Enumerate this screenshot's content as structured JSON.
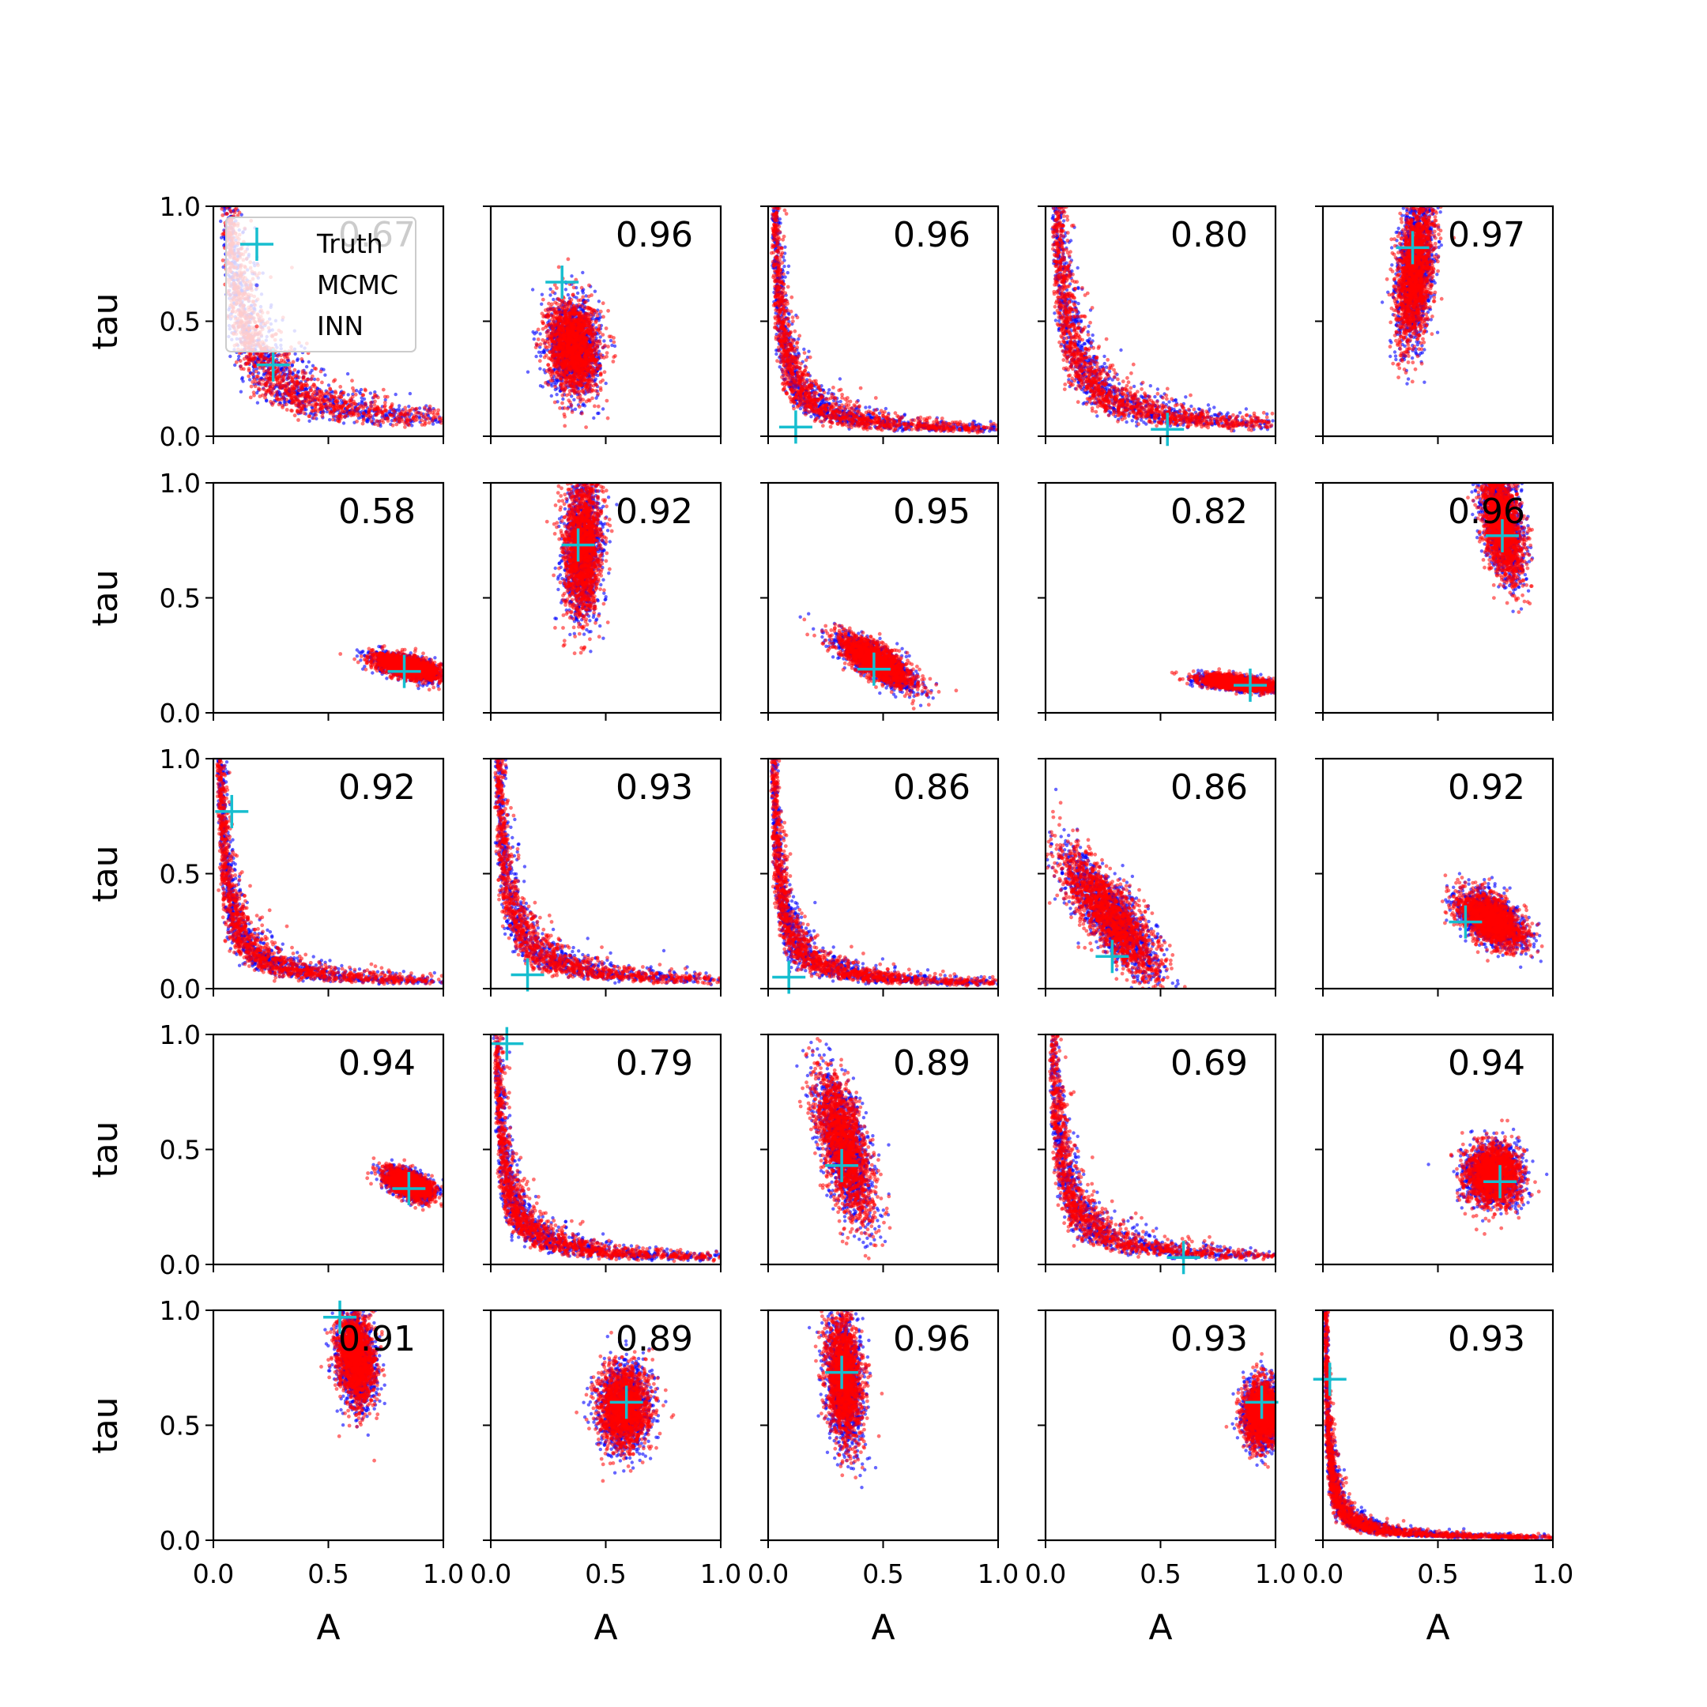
{
  "chart_data": {
    "type": "scatter",
    "layout": {
      "rows": 5,
      "cols": 5
    },
    "xlabel": "A",
    "ylabel": "tau",
    "xlim": [
      0,
      1
    ],
    "ylim": [
      0,
      1
    ],
    "xticks": [
      0.0,
      0.5,
      1.0
    ],
    "yticks": [
      0.0,
      0.5,
      1.0
    ],
    "tick_labels": [
      "0.0",
      "0.5",
      "1.0"
    ],
    "grid": false,
    "legend": {
      "placement": "upper-left of first panel",
      "entries": [
        {
          "name": "Truth",
          "marker": "plus",
          "color": "#17becf"
        },
        {
          "name": "MCMC",
          "marker": "dot",
          "color": "#0000ff"
        },
        {
          "name": "INN",
          "marker": "dot",
          "color": "#ff0000"
        }
      ]
    },
    "series_colors": {
      "truth": "#17becf",
      "mcmc": "#0000ff",
      "inn": "#ff0000"
    },
    "panels": [
      {
        "score": "0.67",
        "truth": [
          0.26,
          0.31
        ],
        "shape": "hyper",
        "k": 0.072,
        "amin": 0.03,
        "amax": 0.95
      },
      {
        "score": "0.96",
        "truth": [
          0.31,
          0.67
        ],
        "shape": "ellipse",
        "center": [
          0.36,
          0.39
        ],
        "sd": [
          0.055,
          0.1
        ],
        "rho": -0.1
      },
      {
        "score": "0.96",
        "truth": [
          0.12,
          0.04
        ],
        "shape": "hyper",
        "k": 0.03,
        "amin": 0.01,
        "amax": 1.0
      },
      {
        "score": "0.80",
        "truth": [
          0.53,
          0.03
        ],
        "shape": "hyper",
        "k": 0.05,
        "amin": 0.02,
        "amax": 0.97
      },
      {
        "score": "0.97",
        "truth": [
          0.39,
          0.82
        ],
        "shape": "ellipse",
        "center": [
          0.4,
          0.72
        ],
        "sd": [
          0.04,
          0.16
        ],
        "rho": 0.35
      },
      {
        "score": "0.58",
        "truth": [
          0.83,
          0.18
        ],
        "shape": "ellipse",
        "center": [
          0.84,
          0.2
        ],
        "sd": [
          0.07,
          0.028
        ],
        "rho": -0.55
      },
      {
        "score": "0.92",
        "truth": [
          0.38,
          0.73
        ],
        "shape": "ellipse",
        "center": [
          0.4,
          0.72
        ],
        "sd": [
          0.04,
          0.15
        ],
        "rho": 0.1
      },
      {
        "score": "0.95",
        "truth": [
          0.46,
          0.19
        ],
        "shape": "ellipse",
        "center": [
          0.47,
          0.22
        ],
        "sd": [
          0.08,
          0.055
        ],
        "rho": -0.75
      },
      {
        "score": "0.82",
        "truth": [
          0.89,
          0.12
        ],
        "shape": "ellipse",
        "center": [
          0.84,
          0.13
        ],
        "sd": [
          0.08,
          0.017
        ],
        "rho": -0.5
      },
      {
        "score": "0.96",
        "truth": [
          0.78,
          0.77
        ],
        "shape": "ellipse",
        "center": [
          0.78,
          0.82
        ],
        "sd": [
          0.045,
          0.12
        ],
        "rho": -0.45
      },
      {
        "score": "0.92",
        "truth": [
          0.08,
          0.77
        ],
        "shape": "hyper",
        "k": 0.03,
        "amin": 0.01,
        "amax": 0.98
      },
      {
        "score": "0.93",
        "truth": [
          0.16,
          0.06
        ],
        "shape": "hyper",
        "k": 0.035,
        "amin": 0.01,
        "amax": 0.98
      },
      {
        "score": "0.86",
        "truth": [
          0.09,
          0.05
        ],
        "shape": "hyper",
        "k": 0.025,
        "amin": 0.01,
        "amax": 1.0
      },
      {
        "score": "0.86",
        "truth": [
          0.29,
          0.14
        ],
        "shape": "ellipse",
        "center": [
          0.28,
          0.32
        ],
        "sd": [
          0.11,
          0.14
        ],
        "rho": -0.82
      },
      {
        "score": "0.92",
        "truth": [
          0.62,
          0.29
        ],
        "shape": "ellipse",
        "center": [
          0.73,
          0.3
        ],
        "sd": [
          0.07,
          0.06
        ],
        "rho": -0.5
      },
      {
        "score": "0.94",
        "truth": [
          0.85,
          0.33
        ],
        "shape": "ellipse",
        "center": [
          0.85,
          0.35
        ],
        "sd": [
          0.05,
          0.032
        ],
        "rho": -0.5
      },
      {
        "score": "0.79",
        "truth": [
          0.07,
          0.96
        ],
        "shape": "hyper",
        "k": 0.028,
        "amin": 0.01,
        "amax": 0.98
      },
      {
        "score": "0.89",
        "truth": [
          0.32,
          0.43
        ],
        "shape": "ellipse",
        "center": [
          0.33,
          0.52
        ],
        "sd": [
          0.06,
          0.16
        ],
        "rho": -0.6
      },
      {
        "score": "0.69",
        "truth": [
          0.6,
          0.03
        ],
        "shape": "hyper",
        "k": 0.035,
        "amin": 0.01,
        "amax": 0.97
      },
      {
        "score": "0.94",
        "truth": [
          0.77,
          0.36
        ],
        "shape": "ellipse",
        "center": [
          0.74,
          0.39
        ],
        "sd": [
          0.06,
          0.065
        ],
        "rho": 0.0
      },
      {
        "score": "0.91",
        "truth": [
          0.55,
          0.97
        ],
        "shape": "ellipse",
        "center": [
          0.62,
          0.79
        ],
        "sd": [
          0.04,
          0.1
        ],
        "rho": -0.2
      },
      {
        "score": "0.89",
        "truth": [
          0.59,
          0.6
        ],
        "shape": "ellipse",
        "center": [
          0.58,
          0.58
        ],
        "sd": [
          0.055,
          0.09
        ],
        "rho": 0.0
      },
      {
        "score": "0.96",
        "truth": [
          0.32,
          0.73
        ],
        "shape": "ellipse",
        "center": [
          0.33,
          0.7
        ],
        "sd": [
          0.04,
          0.14
        ],
        "rho": -0.2
      },
      {
        "score": "0.93",
        "truth": [
          0.94,
          0.6
        ],
        "shape": "ellipse",
        "center": [
          0.94,
          0.55
        ],
        "sd": [
          0.04,
          0.07
        ],
        "rho": 0.0
      },
      {
        "score": "0.93",
        "truth": [
          0.03,
          0.7
        ],
        "shape": "hyper",
        "k": 0.012,
        "amin": 0.005,
        "amax": 1.0
      }
    ]
  }
}
